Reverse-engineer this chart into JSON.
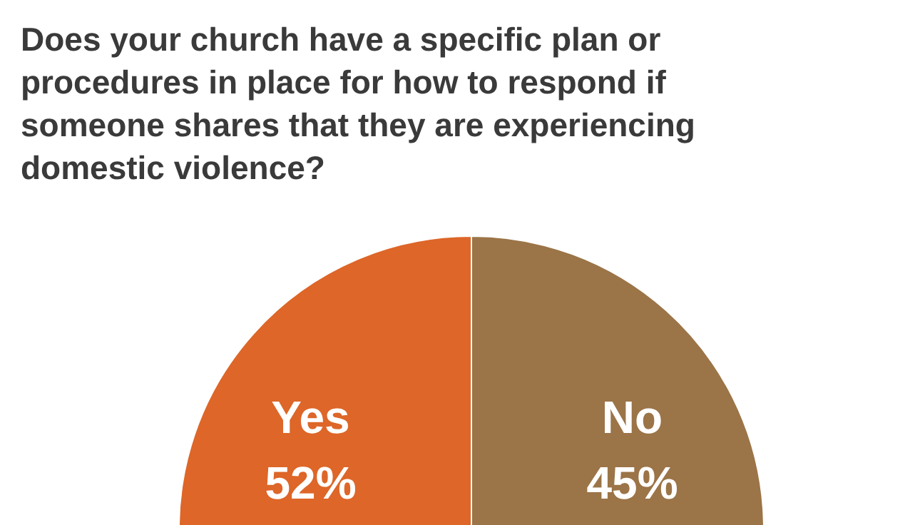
{
  "chart_data": {
    "type": "pie",
    "title": "Does your church have a specific plan or procedures in place for how to respond if someone shares that they are experiencing domestic violence?",
    "categories": [
      "Yes",
      "No"
    ],
    "values": [
      52,
      45
    ],
    "value_labels": [
      "52%",
      "45%"
    ],
    "colors": [
      "#dd6628",
      "#9b7447"
    ]
  }
}
